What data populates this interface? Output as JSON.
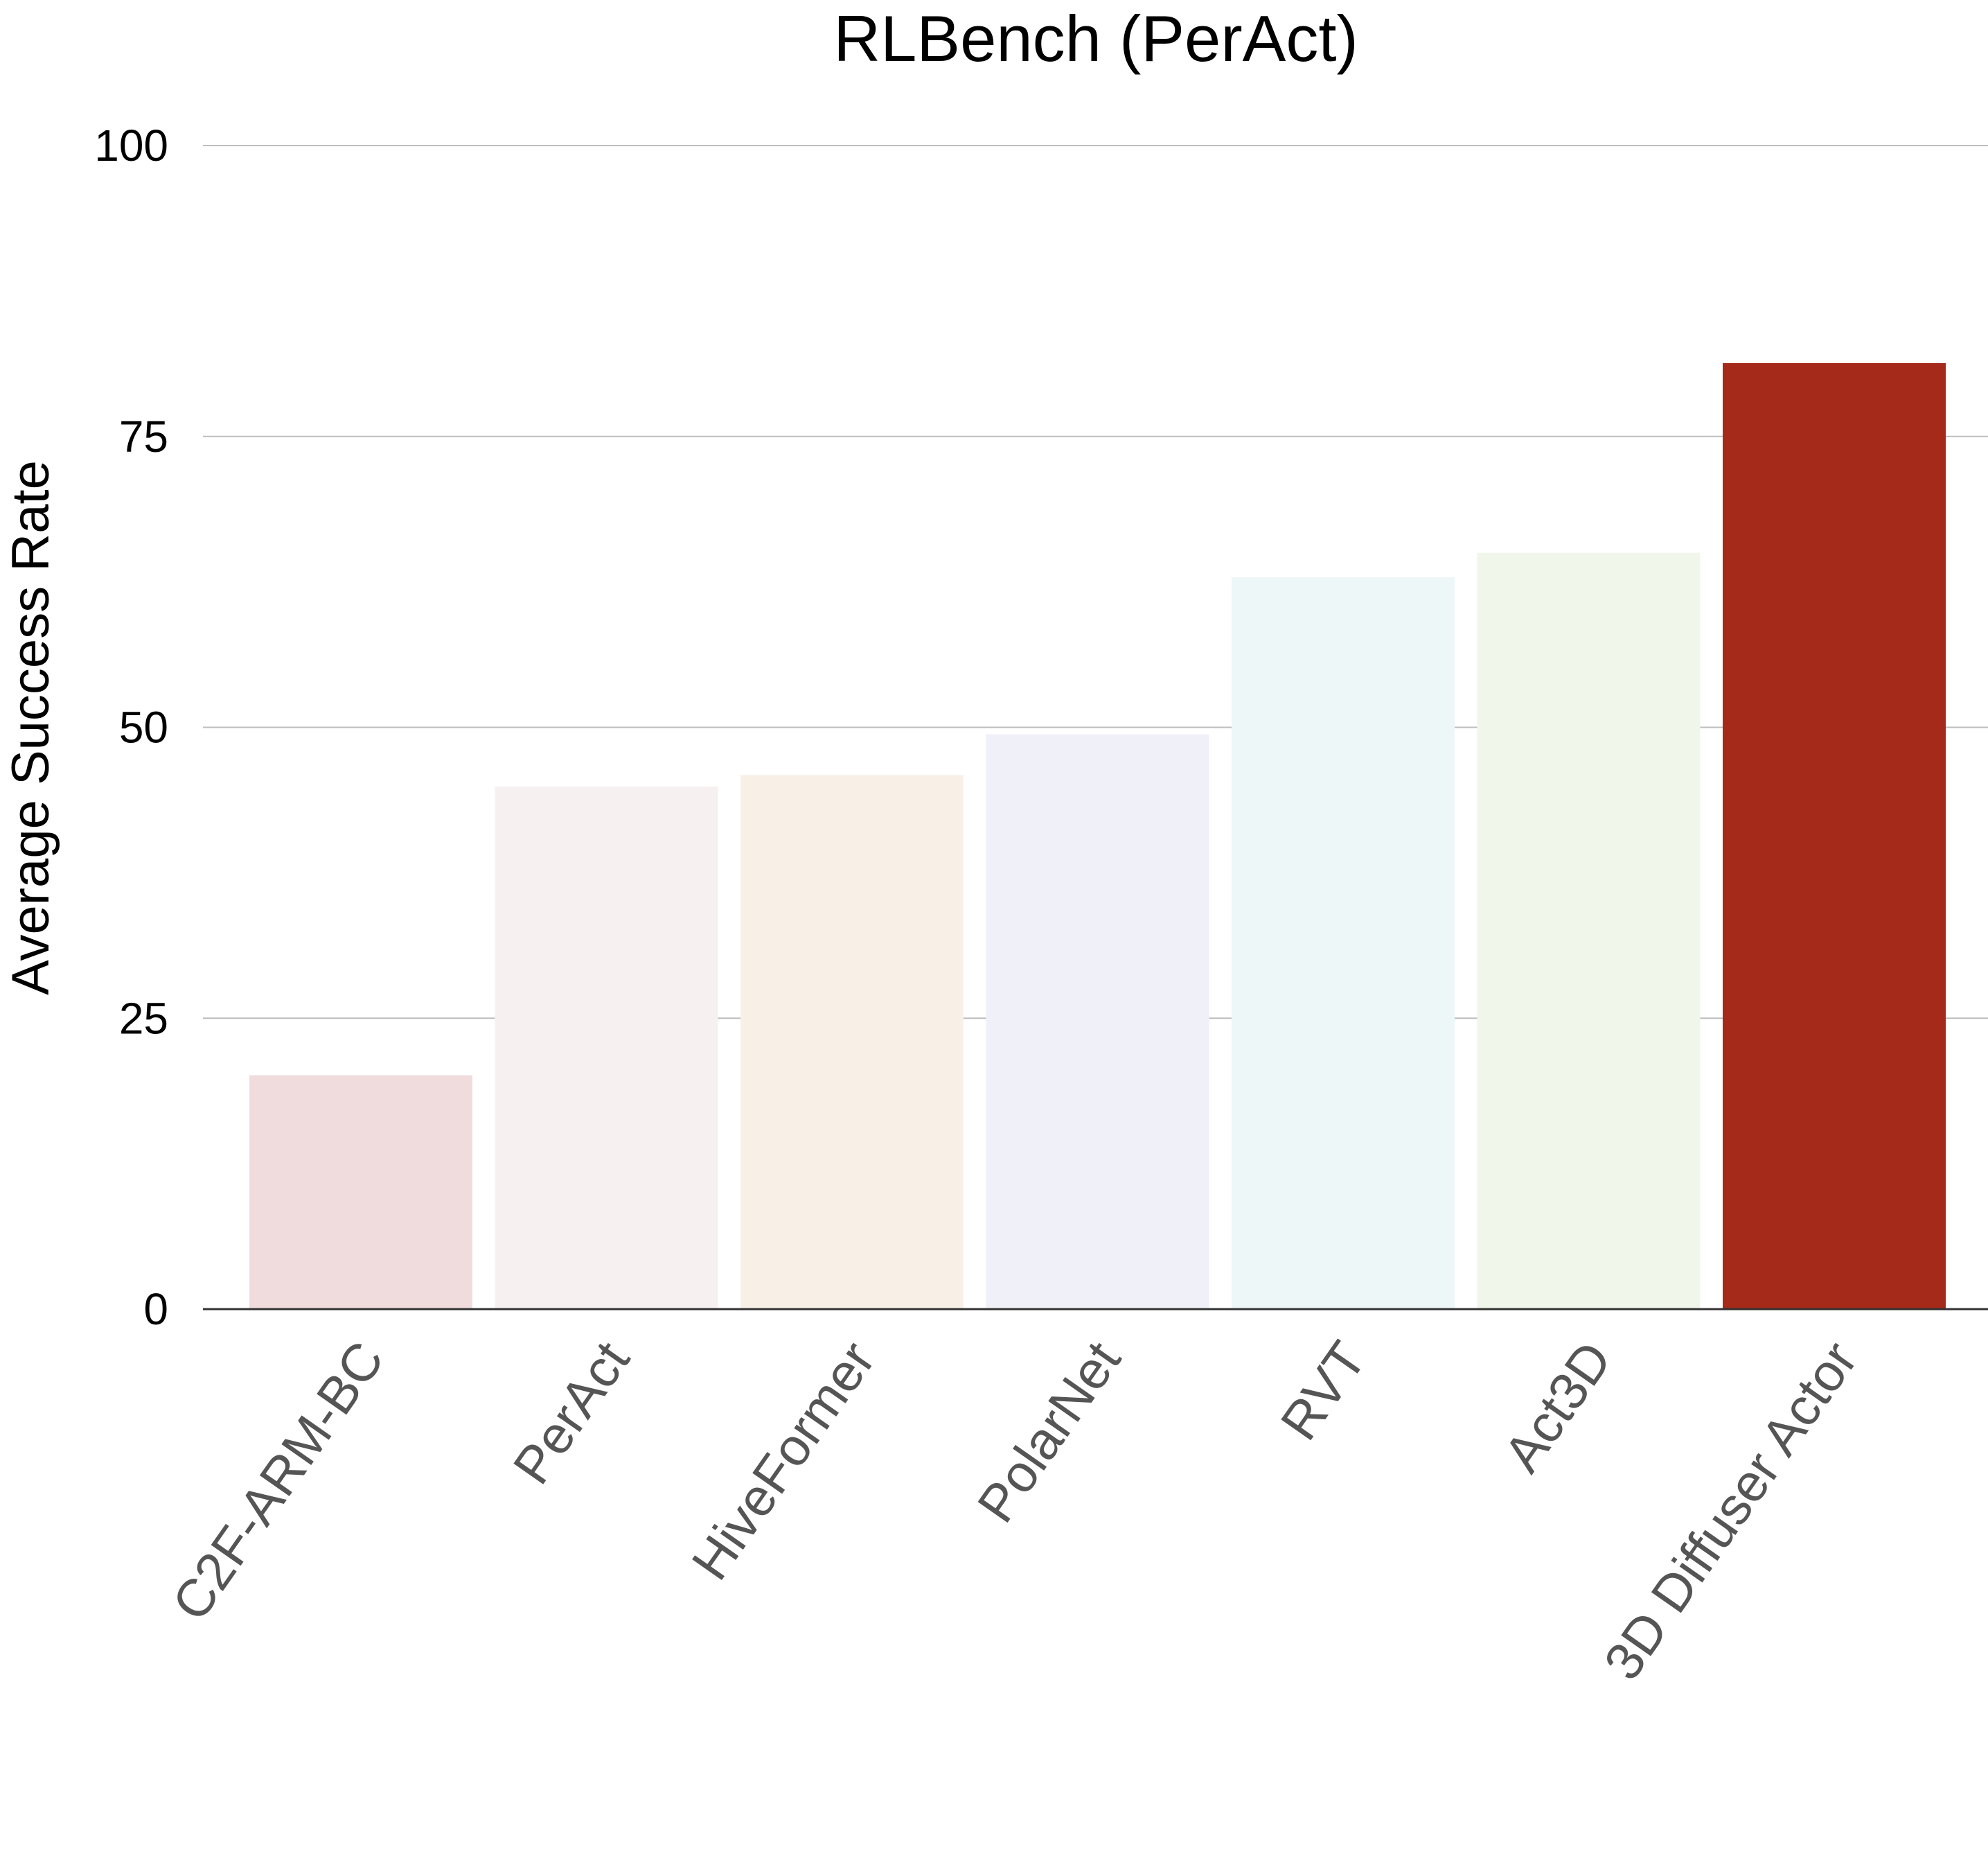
{
  "chart_data": {
    "type": "bar",
    "title": "RLBench (PerAct)",
    "xlabel": "",
    "ylabel": "Average Success Rate",
    "ylim": [
      0,
      100
    ],
    "yticks": [
      0,
      25,
      50,
      75,
      100
    ],
    "grid": true,
    "categories": [
      "C2F-ARM-BC",
      "PerAct",
      "HiveFormer",
      "PolarNet",
      "RVT",
      "Act3D",
      "3D Diffuser Actor"
    ],
    "values": [
      20.1,
      44.9,
      45.9,
      49.4,
      62.9,
      65.0,
      81.3
    ],
    "colors": [
      "#f0dcdc",
      "#f7f0f0",
      "#f8f0e7",
      "#f0f0f9",
      "#eef7f8",
      "#f0f6e9",
      "#a52a1a"
    ]
  }
}
